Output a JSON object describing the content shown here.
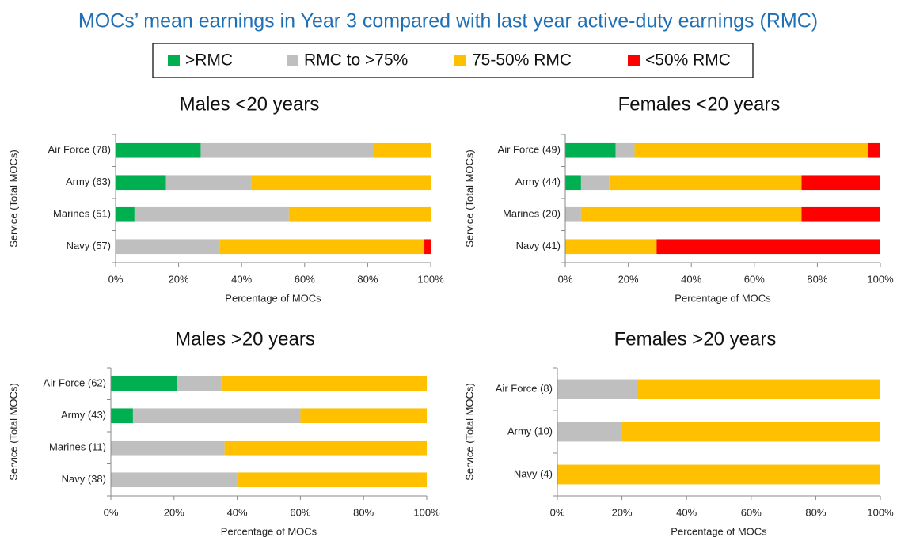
{
  "title": "MOCs’ mean earnings in Year 3 compared with last year active-duty earnings (RMC)",
  "chart_data": [
    {
      "type": "bar",
      "orientation": "horizontal",
      "stacked": true,
      "title": "Males <20 years",
      "xlabel": "Percentage of MOCs",
      "ylabel": "Service (Total MOCs)",
      "categories": [
        "Air Force (78)",
        "Army (63)",
        "Marines (51)",
        "Navy (57)"
      ],
      "series": [
        {
          "name": ">RMC",
          "color": "#00b050",
          "values": [
            27,
            16,
            6,
            0
          ]
        },
        {
          "name": "RMC to >75%",
          "color": "#bfbfbf",
          "values": [
            55,
            27,
            49,
            33
          ]
        },
        {
          "name": "75-50% RMC",
          "color": "#ffc000",
          "values": [
            18,
            57,
            45,
            65
          ]
        },
        {
          "name": "<50% RMC",
          "color": "#ff0000",
          "values": [
            0,
            0,
            0,
            2
          ]
        }
      ],
      "xlim": [
        0,
        100
      ],
      "xticks": [
        {
          "value": 0,
          "label": "0%"
        },
        {
          "value": 20,
          "label": "20%"
        },
        {
          "value": 40,
          "label": "40%"
        },
        {
          "value": 60,
          "label": "60%"
        },
        {
          "value": 80,
          "label": "80%"
        },
        {
          "value": 100,
          "label": "100%"
        }
      ]
    },
    {
      "type": "bar",
      "orientation": "horizontal",
      "stacked": true,
      "title": "Females <20 years",
      "xlabel": "Percentage of MOCs",
      "ylabel": "Service (Total MOCs)",
      "categories": [
        "Air Force (49)",
        "Army (44)",
        "Marines (20)",
        "Navy (41)"
      ],
      "series": [
        {
          "name": ">RMC",
          "color": "#00b050",
          "values": [
            16,
            5,
            0,
            0
          ]
        },
        {
          "name": "RMC to >75%",
          "color": "#bfbfbf",
          "values": [
            6,
            9,
            5,
            0
          ]
        },
        {
          "name": "75-50% RMC",
          "color": "#ffc000",
          "values": [
            74,
            61,
            70,
            29
          ]
        },
        {
          "name": "<50% RMC",
          "color": "#ff0000",
          "values": [
            4,
            25,
            25,
            71
          ]
        }
      ],
      "xlim": [
        0,
        100
      ],
      "xticks": [
        {
          "value": 0,
          "label": "0%"
        },
        {
          "value": 20,
          "label": "20%"
        },
        {
          "value": 40,
          "label": "40%"
        },
        {
          "value": 60,
          "label": "60%"
        },
        {
          "value": 80,
          "label": "80%"
        },
        {
          "value": 100,
          "label": "100%"
        }
      ]
    },
    {
      "type": "bar",
      "orientation": "horizontal",
      "stacked": true,
      "title": "Males >20 years",
      "xlabel": "Percentage of MOCs",
      "ylabel": "Service (Total MOCs)",
      "categories": [
        "Air Force (62)",
        "Army (43)",
        "Marines (11)",
        "Navy (38)"
      ],
      "series": [
        {
          "name": ">RMC",
          "color": "#00b050",
          "values": [
            21,
            7,
            0,
            0
          ]
        },
        {
          "name": "RMC to >75%",
          "color": "#bfbfbf",
          "values": [
            14,
            53,
            36,
            40
          ]
        },
        {
          "name": "75-50% RMC",
          "color": "#ffc000",
          "values": [
            65,
            40,
            64,
            60
          ]
        },
        {
          "name": "<50% RMC",
          "color": "#ff0000",
          "values": [
            0,
            0,
            0,
            0
          ]
        }
      ],
      "xlim": [
        0,
        100
      ],
      "xticks": [
        {
          "value": 0,
          "label": "0%"
        },
        {
          "value": 20,
          "label": "20%"
        },
        {
          "value": 40,
          "label": "40%"
        },
        {
          "value": 60,
          "label": "60%"
        },
        {
          "value": 80,
          "label": "80%"
        },
        {
          "value": 100,
          "label": "100%"
        }
      ]
    },
    {
      "type": "bar",
      "orientation": "horizontal",
      "stacked": true,
      "title": "Females >20 years",
      "xlabel": "Percentage of MOCs",
      "ylabel": "Service (Total MOCs)",
      "categories": [
        "Air Force (8)",
        "Army (10)",
        "Navy (4)"
      ],
      "series": [
        {
          "name": ">RMC",
          "color": "#00b050",
          "values": [
            0,
            0,
            0
          ]
        },
        {
          "name": "RMC to >75%",
          "color": "#bfbfbf",
          "values": [
            25,
            20,
            0
          ]
        },
        {
          "name": "75-50% RMC",
          "color": "#ffc000",
          "values": [
            75,
            80,
            100
          ]
        },
        {
          "name": "<50% RMC",
          "color": "#ff0000",
          "values": [
            0,
            0,
            0
          ]
        }
      ],
      "xlim": [
        0,
        100
      ],
      "xticks": [
        {
          "value": 0,
          "label": "0%"
        },
        {
          "value": 20,
          "label": "20%"
        },
        {
          "value": 40,
          "label": "40%"
        },
        {
          "value": 60,
          "label": "60%"
        },
        {
          "value": 80,
          "label": "80%"
        },
        {
          "value": 100,
          "label": "100%"
        }
      ]
    }
  ]
}
